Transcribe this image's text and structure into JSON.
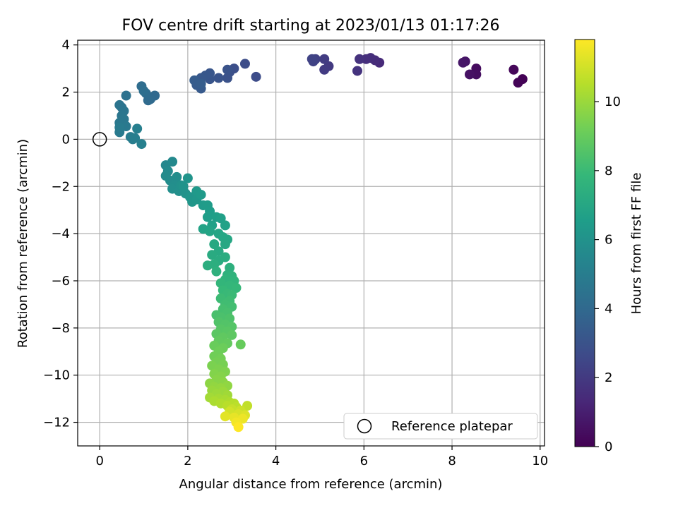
{
  "chart_data": {
    "type": "scatter",
    "title": "FOV centre drift starting at 2023/01/13 01:17:26",
    "xlabel": "Angular distance from reference (arcmin)",
    "ylabel": "Rotation from reference (arcmin)",
    "xlim": [
      -0.5,
      10.1
    ],
    "ylim": [
      -13.0,
      4.2
    ],
    "xticks": [
      0,
      2,
      4,
      6,
      8,
      10
    ],
    "yticks": [
      -12,
      -10,
      -8,
      -6,
      -4,
      -2,
      0,
      2,
      4
    ],
    "grid": true,
    "legend": {
      "placement": "lower-right",
      "entries": [
        "Reference platepar"
      ]
    },
    "colorbar": {
      "label": "Hours from first FF file",
      "colormap": "viridis",
      "range": [
        0,
        11.8
      ],
      "ticks": [
        0,
        2,
        4,
        6,
        8,
        10
      ]
    },
    "reference_point": {
      "x": 0,
      "y": 0
    },
    "points": [
      {
        "x": 9.6,
        "y": 2.55,
        "c": 0.05
      },
      {
        "x": 9.5,
        "y": 2.4,
        "c": 0.1
      },
      {
        "x": 9.4,
        "y": 2.95,
        "c": 0.2
      },
      {
        "x": 8.55,
        "y": 3.0,
        "c": 0.35
      },
      {
        "x": 8.55,
        "y": 2.75,
        "c": 0.45
      },
      {
        "x": 8.4,
        "y": 2.75,
        "c": 0.55
      },
      {
        "x": 8.3,
        "y": 3.3,
        "c": 0.65
      },
      {
        "x": 8.25,
        "y": 3.25,
        "c": 0.7
      },
      {
        "x": 6.35,
        "y": 3.25,
        "c": 1.4
      },
      {
        "x": 6.25,
        "y": 3.35,
        "c": 1.5
      },
      {
        "x": 6.15,
        "y": 3.45,
        "c": 1.55
      },
      {
        "x": 6.05,
        "y": 3.4,
        "c": 1.6
      },
      {
        "x": 5.9,
        "y": 3.4,
        "c": 1.7
      },
      {
        "x": 5.85,
        "y": 2.9,
        "c": 1.75
      },
      {
        "x": 5.2,
        "y": 3.1,
        "c": 2.0
      },
      {
        "x": 5.1,
        "y": 2.95,
        "c": 2.05
      },
      {
        "x": 5.1,
        "y": 3.4,
        "c": 2.1
      },
      {
        "x": 4.9,
        "y": 3.4,
        "c": 2.25
      },
      {
        "x": 4.85,
        "y": 3.3,
        "c": 2.3
      },
      {
        "x": 4.82,
        "y": 3.4,
        "c": 2.35
      },
      {
        "x": 3.55,
        "y": 2.65,
        "c": 2.7
      },
      {
        "x": 3.3,
        "y": 3.2,
        "c": 2.75
      },
      {
        "x": 3.05,
        "y": 3.0,
        "c": 2.85
      },
      {
        "x": 2.95,
        "y": 2.85,
        "c": 2.9
      },
      {
        "x": 2.9,
        "y": 2.6,
        "c": 2.95
      },
      {
        "x": 2.9,
        "y": 2.95,
        "c": 3.0
      },
      {
        "x": 2.7,
        "y": 2.6,
        "c": 3.05
      },
      {
        "x": 2.5,
        "y": 2.55,
        "c": 3.1
      },
      {
        "x": 2.5,
        "y": 2.8,
        "c": 3.15
      },
      {
        "x": 2.4,
        "y": 2.7,
        "c": 3.2
      },
      {
        "x": 2.3,
        "y": 2.6,
        "c": 3.25
      },
      {
        "x": 2.3,
        "y": 2.15,
        "c": 3.3
      },
      {
        "x": 2.2,
        "y": 2.3,
        "c": 3.35
      },
      {
        "x": 2.15,
        "y": 2.5,
        "c": 3.4
      },
      {
        "x": 2.3,
        "y": 2.35,
        "c": 3.45
      },
      {
        "x": 1.25,
        "y": 1.85,
        "c": 4.0
      },
      {
        "x": 1.15,
        "y": 1.7,
        "c": 4.05
      },
      {
        "x": 1.1,
        "y": 1.65,
        "c": 4.1
      },
      {
        "x": 1.05,
        "y": 1.95,
        "c": 4.15
      },
      {
        "x": 0.95,
        "y": 2.25,
        "c": 4.2
      },
      {
        "x": 1.0,
        "y": 2.05,
        "c": 4.25
      },
      {
        "x": 0.6,
        "y": 1.85,
        "c": 4.4
      },
      {
        "x": 0.5,
        "y": 1.35,
        "c": 4.5
      },
      {
        "x": 0.45,
        "y": 1.45,
        "c": 4.55
      },
      {
        "x": 0.55,
        "y": 1.2,
        "c": 4.6
      },
      {
        "x": 0.5,
        "y": 1.0,
        "c": 4.65
      },
      {
        "x": 0.55,
        "y": 0.85,
        "c": 4.7
      },
      {
        "x": 0.45,
        "y": 0.7,
        "c": 4.75
      },
      {
        "x": 0.6,
        "y": 0.55,
        "c": 4.8
      },
      {
        "x": 0.45,
        "y": 0.3,
        "c": 4.85
      },
      {
        "x": 0.45,
        "y": 0.5,
        "c": 4.9
      },
      {
        "x": 0.7,
        "y": 0.1,
        "c": 4.95
      },
      {
        "x": 0.75,
        "y": 0.0,
        "c": 5.0
      },
      {
        "x": 0.8,
        "y": 0.05,
        "c": 5.05
      },
      {
        "x": 0.85,
        "y": 0.45,
        "c": 5.1
      },
      {
        "x": 0.95,
        "y": -0.2,
        "c": 5.15
      },
      {
        "x": 1.5,
        "y": -1.1,
        "c": 5.5
      },
      {
        "x": 1.65,
        "y": -0.95,
        "c": 5.55
      },
      {
        "x": 1.55,
        "y": -1.35,
        "c": 5.6
      },
      {
        "x": 1.5,
        "y": -1.55,
        "c": 5.65
      },
      {
        "x": 1.6,
        "y": -1.75,
        "c": 5.7
      },
      {
        "x": 1.75,
        "y": -1.6,
        "c": 5.75
      },
      {
        "x": 1.7,
        "y": -1.95,
        "c": 5.8
      },
      {
        "x": 1.65,
        "y": -2.1,
        "c": 5.85
      },
      {
        "x": 1.8,
        "y": -2.2,
        "c": 5.9
      },
      {
        "x": 1.85,
        "y": -1.95,
        "c": 5.95
      },
      {
        "x": 1.95,
        "y": -2.3,
        "c": 6.0
      },
      {
        "x": 1.9,
        "y": -2.0,
        "c": 6.05
      },
      {
        "x": 2.0,
        "y": -1.65,
        "c": 6.1
      },
      {
        "x": 2.05,
        "y": -2.45,
        "c": 6.15
      },
      {
        "x": 2.1,
        "y": -2.65,
        "c": 6.2
      },
      {
        "x": 2.2,
        "y": -2.55,
        "c": 6.25
      },
      {
        "x": 2.2,
        "y": -2.2,
        "c": 6.3
      },
      {
        "x": 2.3,
        "y": -2.35,
        "c": 6.35
      },
      {
        "x": 2.35,
        "y": -2.8,
        "c": 6.4
      },
      {
        "x": 2.45,
        "y": -2.8,
        "c": 6.45
      },
      {
        "x": 2.5,
        "y": -3.05,
        "c": 6.5
      },
      {
        "x": 2.45,
        "y": -3.3,
        "c": 6.55
      },
      {
        "x": 2.65,
        "y": -3.3,
        "c": 6.6
      },
      {
        "x": 2.75,
        "y": -3.35,
        "c": 6.65
      },
      {
        "x": 2.55,
        "y": -3.65,
        "c": 6.7
      },
      {
        "x": 2.85,
        "y": -3.65,
        "c": 6.75
      },
      {
        "x": 2.35,
        "y": -3.8,
        "c": 6.8
      },
      {
        "x": 2.5,
        "y": -3.9,
        "c": 6.85
      },
      {
        "x": 2.7,
        "y": -4.0,
        "c": 6.9
      },
      {
        "x": 2.8,
        "y": -4.15,
        "c": 6.95
      },
      {
        "x": 2.9,
        "y": -4.25,
        "c": 7.0
      },
      {
        "x": 2.85,
        "y": -4.45,
        "c": 7.05
      },
      {
        "x": 2.6,
        "y": -4.45,
        "c": 7.1
      },
      {
        "x": 2.7,
        "y": -4.75,
        "c": 7.15
      },
      {
        "x": 2.55,
        "y": -4.9,
        "c": 7.2
      },
      {
        "x": 2.7,
        "y": -5.15,
        "c": 7.25
      },
      {
        "x": 2.85,
        "y": -5.0,
        "c": 7.3
      },
      {
        "x": 2.45,
        "y": -5.35,
        "c": 7.35
      },
      {
        "x": 2.6,
        "y": -5.3,
        "c": 7.4
      },
      {
        "x": 2.95,
        "y": -5.45,
        "c": 7.45
      },
      {
        "x": 2.65,
        "y": -5.6,
        "c": 7.5
      },
      {
        "x": 2.9,
        "y": -5.75,
        "c": 7.55
      },
      {
        "x": 3.0,
        "y": -5.8,
        "c": 7.6
      },
      {
        "x": 2.85,
        "y": -5.95,
        "c": 7.65
      },
      {
        "x": 3.05,
        "y": -6.0,
        "c": 7.7
      },
      {
        "x": 2.75,
        "y": -6.1,
        "c": 7.75
      },
      {
        "x": 2.95,
        "y": -6.2,
        "c": 7.8
      },
      {
        "x": 3.1,
        "y": -6.3,
        "c": 7.85
      },
      {
        "x": 2.8,
        "y": -6.4,
        "c": 7.9
      },
      {
        "x": 2.9,
        "y": -6.55,
        "c": 7.95
      },
      {
        "x": 3.0,
        "y": -6.6,
        "c": 8.0
      },
      {
        "x": 2.75,
        "y": -6.75,
        "c": 8.05
      },
      {
        "x": 2.95,
        "y": -6.85,
        "c": 8.1
      },
      {
        "x": 2.85,
        "y": -7.0,
        "c": 8.15
      },
      {
        "x": 3.0,
        "y": -7.1,
        "c": 8.2
      },
      {
        "x": 2.8,
        "y": -7.2,
        "c": 8.25
      },
      {
        "x": 2.9,
        "y": -7.35,
        "c": 8.3
      },
      {
        "x": 2.65,
        "y": -7.45,
        "c": 8.35
      },
      {
        "x": 2.75,
        "y": -7.55,
        "c": 8.4
      },
      {
        "x": 2.95,
        "y": -7.6,
        "c": 8.45
      },
      {
        "x": 2.7,
        "y": -7.75,
        "c": 8.5
      },
      {
        "x": 2.85,
        "y": -7.85,
        "c": 8.55
      },
      {
        "x": 3.0,
        "y": -7.95,
        "c": 8.6
      },
      {
        "x": 2.75,
        "y": -8.05,
        "c": 8.65
      },
      {
        "x": 2.9,
        "y": -8.15,
        "c": 8.7
      },
      {
        "x": 2.65,
        "y": -8.25,
        "c": 8.75
      },
      {
        "x": 3.0,
        "y": -8.3,
        "c": 8.8
      },
      {
        "x": 2.8,
        "y": -8.4,
        "c": 8.85
      },
      {
        "x": 2.7,
        "y": -8.55,
        "c": 8.9
      },
      {
        "x": 2.9,
        "y": -8.65,
        "c": 8.95
      },
      {
        "x": 3.2,
        "y": -8.7,
        "c": 9.0
      },
      {
        "x": 2.6,
        "y": -8.75,
        "c": 9.05
      },
      {
        "x": 2.8,
        "y": -8.85,
        "c": 9.1
      },
      {
        "x": 2.7,
        "y": -9.0,
        "c": 9.15
      },
      {
        "x": 2.6,
        "y": -9.2,
        "c": 9.2
      },
      {
        "x": 2.75,
        "y": -9.3,
        "c": 9.25
      },
      {
        "x": 2.65,
        "y": -9.45,
        "c": 9.3
      },
      {
        "x": 2.8,
        "y": -9.55,
        "c": 9.35
      },
      {
        "x": 2.55,
        "y": -9.6,
        "c": 9.4
      },
      {
        "x": 2.7,
        "y": -9.75,
        "c": 9.45
      },
      {
        "x": 2.85,
        "y": -9.85,
        "c": 9.5
      },
      {
        "x": 2.6,
        "y": -9.95,
        "c": 9.55
      },
      {
        "x": 2.75,
        "y": -10.05,
        "c": 9.6
      },
      {
        "x": 2.65,
        "y": -10.2,
        "c": 9.65
      },
      {
        "x": 2.8,
        "y": -10.3,
        "c": 9.7
      },
      {
        "x": 2.5,
        "y": -10.35,
        "c": 9.75
      },
      {
        "x": 2.9,
        "y": -10.45,
        "c": 9.8
      },
      {
        "x": 2.6,
        "y": -10.5,
        "c": 9.85
      },
      {
        "x": 2.75,
        "y": -10.55,
        "c": 9.9
      },
      {
        "x": 2.55,
        "y": -10.65,
        "c": 9.95
      },
      {
        "x": 2.8,
        "y": -10.7,
        "c": 10.0
      },
      {
        "x": 2.65,
        "y": -10.8,
        "c": 10.05
      },
      {
        "x": 2.9,
        "y": -10.85,
        "c": 10.1
      },
      {
        "x": 2.5,
        "y": -10.95,
        "c": 10.15
      },
      {
        "x": 2.7,
        "y": -11.0,
        "c": 10.2
      },
      {
        "x": 2.85,
        "y": -11.05,
        "c": 10.25
      },
      {
        "x": 2.6,
        "y": -11.1,
        "c": 10.3
      },
      {
        "x": 2.95,
        "y": -11.15,
        "c": 10.35
      },
      {
        "x": 2.75,
        "y": -11.2,
        "c": 10.4
      },
      {
        "x": 3.05,
        "y": -11.2,
        "c": 10.5
      },
      {
        "x": 2.9,
        "y": -11.3,
        "c": 10.55
      },
      {
        "x": 3.1,
        "y": -11.35,
        "c": 10.6
      },
      {
        "x": 3.35,
        "y": -11.3,
        "c": 10.7
      },
      {
        "x": 3.0,
        "y": -11.45,
        "c": 10.8
      },
      {
        "x": 3.2,
        "y": -11.5,
        "c": 10.9
      },
      {
        "x": 2.95,
        "y": -11.55,
        "c": 11.0
      },
      {
        "x": 3.15,
        "y": -11.65,
        "c": 11.1
      },
      {
        "x": 3.3,
        "y": -11.7,
        "c": 11.2
      },
      {
        "x": 2.85,
        "y": -11.75,
        "c": 11.3
      },
      {
        "x": 3.05,
        "y": -11.8,
        "c": 11.4
      },
      {
        "x": 3.25,
        "y": -11.85,
        "c": 11.5
      },
      {
        "x": 3.1,
        "y": -12.0,
        "c": 11.6
      },
      {
        "x": 3.15,
        "y": -12.2,
        "c": 11.8
      }
    ]
  }
}
